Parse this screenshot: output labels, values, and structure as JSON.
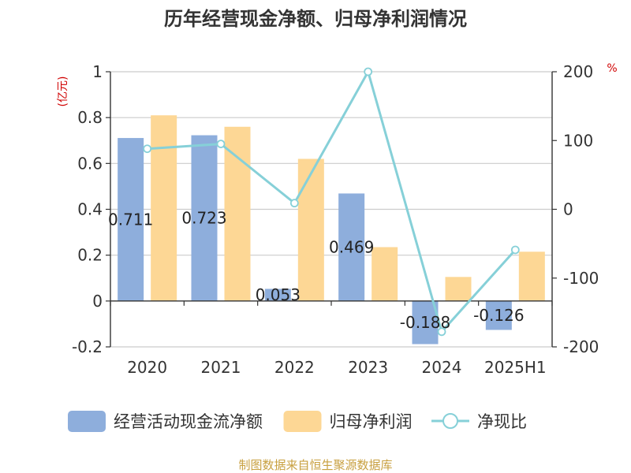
{
  "chart_data": {
    "type": "bar",
    "title": "历年经营现金净额、归母净利润情况",
    "categories": [
      "2020",
      "2021",
      "2022",
      "2023",
      "2024",
      "2025H1"
    ],
    "series": [
      {
        "name": "经营活动现金流净额",
        "type": "bar",
        "axis": "left",
        "color": "#8eaedc",
        "values": [
          0.711,
          0.723,
          0.053,
          0.469,
          -0.188,
          -0.126
        ],
        "labels": [
          "0.711",
          "0.723",
          "0.053",
          "0.469",
          "-0.188",
          "-0.126"
        ]
      },
      {
        "name": "归母净利润",
        "type": "bar",
        "axis": "left",
        "color": "#fdd795",
        "values": [
          0.81,
          0.76,
          0.62,
          0.235,
          0.105,
          0.215
        ]
      },
      {
        "name": "净现比",
        "type": "line",
        "axis": "right",
        "color": "#86d0d8",
        "values": [
          88,
          95,
          9,
          200,
          -178,
          -59
        ]
      }
    ],
    "y_left": {
      "unit": "(亿元)",
      "min": -0.2,
      "max": 1,
      "ticks": [
        -0.2,
        0,
        0.2,
        0.4,
        0.6,
        0.8,
        1
      ],
      "tick_labels": [
        "-0.2",
        "0",
        "0.2",
        "0.4",
        "0.6",
        "0.8",
        "1"
      ]
    },
    "y_right": {
      "unit": "%",
      "min": -200,
      "max": 200,
      "ticks": [
        -200,
        -100,
        0,
        100,
        200
      ],
      "tick_labels": [
        "-200",
        "-100",
        "0",
        "100",
        "200"
      ]
    },
    "grid": true,
    "legend_position": "bottom"
  },
  "source": "制图数据来自恒生聚源数据库"
}
